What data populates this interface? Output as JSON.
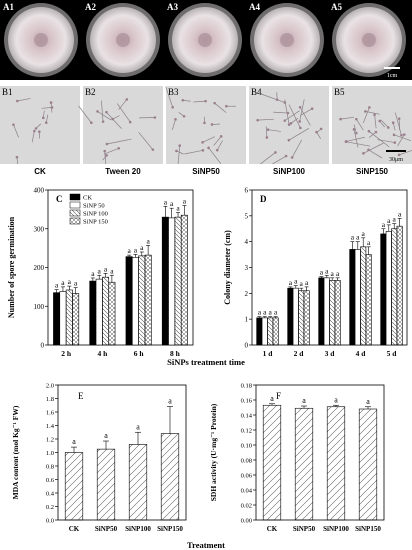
{
  "row_a": {
    "panels": [
      "A1",
      "A2",
      "A3",
      "A4",
      "A5"
    ],
    "scale_label": "1cm"
  },
  "row_b": {
    "panels": [
      "B1",
      "B2",
      "B3",
      "B4",
      "B5"
    ],
    "captions": [
      "CK",
      "Tween 20",
      "SiNP50",
      "SiNP100",
      "SiNP150"
    ],
    "scale_label": "30μm"
  },
  "shared": {
    "xlabel_top": "SiNPs treatment time",
    "xlabel_bottom": "Treatment"
  },
  "chart_data": [
    {
      "panel_label": "C",
      "type": "bar",
      "ylabel": "Number of spore germination",
      "categories": [
        "2 h",
        "4 h",
        "6 h",
        "8 h"
      ],
      "series": [
        {
          "name": "CK",
          "values": [
            135,
            165,
            228,
            330
          ]
        },
        {
          "name": "SiNP 50",
          "values": [
            138,
            170,
            226,
            328
          ]
        },
        {
          "name": "SiNP 100",
          "values": [
            142,
            175,
            230,
            330
          ]
        },
        {
          "name": "SiNP 150",
          "values": [
            133,
            162,
            232,
            335
          ]
        }
      ],
      "errors": [
        [
          8,
          8,
          4,
          28
        ],
        [
          12,
          10,
          8,
          25
        ],
        [
          10,
          10,
          10,
          12
        ],
        [
          15,
          18,
          25,
          25
        ]
      ],
      "letters": "a",
      "ylim": [
        0,
        400
      ],
      "yticks": [
        0,
        100,
        200,
        300,
        400
      ]
    },
    {
      "panel_label": "D",
      "type": "bar",
      "ylabel": "Colony diameter (cm)",
      "categories": [
        "1 d",
        "2 d",
        "3 d",
        "4 d",
        "5 d"
      ],
      "series": [
        {
          "name": "CK",
          "values": [
            1.05,
            2.2,
            2.6,
            3.7,
            4.3
          ]
        },
        {
          "name": "SiNP 50",
          "values": [
            1.05,
            2.2,
            2.6,
            3.7,
            4.4
          ]
        },
        {
          "name": "SiNP 100",
          "values": [
            1.05,
            2.1,
            2.5,
            3.8,
            4.5
          ]
        },
        {
          "name": "SiNP 150",
          "values": [
            1.05,
            2.1,
            2.5,
            3.5,
            4.6
          ]
        }
      ],
      "errors": [
        [
          0.05,
          0.05,
          0.05,
          0.3,
          0.2
        ],
        [
          0.05,
          0.1,
          0.1,
          0.3,
          0.25
        ],
        [
          0.05,
          0.1,
          0.1,
          0.35,
          0.2
        ],
        [
          0.05,
          0.15,
          0.1,
          0.3,
          0.3
        ]
      ],
      "letters": "a",
      "ylim": [
        0,
        6
      ],
      "yticks": [
        0,
        1,
        2,
        3,
        4,
        5,
        6
      ]
    },
    {
      "panel_label": "E",
      "type": "bar",
      "ylabel": "MDA content (mol Kg⁻¹ FW)",
      "categories": [
        "CK",
        "SiNP50",
        "SiNP100",
        "SiNP150"
      ],
      "values": [
        1.0,
        1.05,
        1.12,
        1.28
      ],
      "errors": [
        0.08,
        0.12,
        0.18,
        0.4
      ],
      "letters": [
        "a",
        "a",
        "a",
        "a"
      ],
      "ylim": [
        0,
        2.0
      ],
      "yticks": [
        "0.0",
        "0.2",
        "0.4",
        "0.6",
        "0.8",
        "1.0",
        "1.2",
        "1.4",
        "1.6",
        "1.8",
        "2.0"
      ]
    },
    {
      "panel_label": "F",
      "type": "bar",
      "ylabel": "SDH activity (U·mg⁻¹ Protein)",
      "categories": [
        "CK",
        "SiNP50",
        "SiNP100",
        "SiNP150"
      ],
      "values": [
        0.153,
        0.149,
        0.151,
        0.148
      ],
      "errors": [
        0.002,
        0.003,
        0.002,
        0.003
      ],
      "letters": [
        "a",
        "a",
        "a",
        "a"
      ],
      "ylim": [
        0,
        0.18
      ],
      "yticks": [
        "0.00",
        "0.02",
        "0.04",
        "0.06",
        "0.08",
        "0.10",
        "0.12",
        "0.14",
        "0.16",
        "0.18"
      ]
    }
  ]
}
